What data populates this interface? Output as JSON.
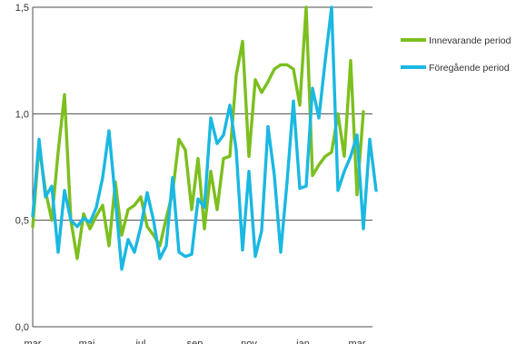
{
  "chart_data": {
    "type": "line",
    "ylim": [
      0,
      1.5
    ],
    "y_ticks": [
      "0,0",
      "0,5",
      "1,0",
      "1,5"
    ],
    "y_tick_values": [
      0,
      0.5,
      1.0,
      1.5
    ],
    "x_ticks": [
      "mar",
      "maj",
      "jul",
      "sep",
      "nov",
      "jan",
      "mar"
    ],
    "x_tick_positions": [
      0,
      8.5,
      17,
      25.5,
      34,
      42.5,
      51
    ],
    "grid": "horizontal",
    "legend_position": "right",
    "series": [
      {
        "name": "Innevarande period",
        "color": "#7cbf1e",
        "values": [
          0.47,
          0.85,
          0.64,
          0.5,
          0.82,
          1.09,
          0.5,
          0.32,
          0.53,
          0.46,
          0.52,
          0.57,
          0.38,
          0.68,
          0.43,
          0.55,
          0.57,
          0.61,
          0.47,
          0.43,
          0.38,
          0.51,
          0.63,
          0.88,
          0.83,
          0.55,
          0.79,
          0.46,
          0.73,
          0.55,
          0.79,
          0.8,
          1.18,
          1.34,
          0.8,
          1.16,
          1.1,
          1.15,
          1.21,
          1.23,
          1.23,
          1.21,
          1.04,
          1.5,
          0.71,
          0.76,
          0.8,
          0.82,
          1.0,
          0.8,
          1.25,
          0.62,
          1.01
        ]
      },
      {
        "name": "Föregående period",
        "color": "#1ab8e2",
        "values": [
          0.52,
          0.88,
          0.61,
          0.66,
          0.35,
          0.64,
          0.5,
          0.47,
          0.51,
          0.49,
          0.56,
          0.7,
          0.92,
          0.6,
          0.27,
          0.41,
          0.35,
          0.47,
          0.63,
          0.5,
          0.32,
          0.38,
          0.7,
          0.35,
          0.33,
          0.34,
          0.6,
          0.56,
          0.98,
          0.86,
          0.9,
          1.04,
          0.83,
          0.36,
          0.73,
          0.33,
          0.45,
          0.94,
          0.71,
          0.35,
          0.68,
          1.06,
          0.65,
          0.66,
          1.12,
          0.98,
          1.25,
          1.5,
          0.64,
          0.73,
          0.8,
          0.9,
          0.46,
          0.88,
          0.64
        ]
      }
    ]
  }
}
